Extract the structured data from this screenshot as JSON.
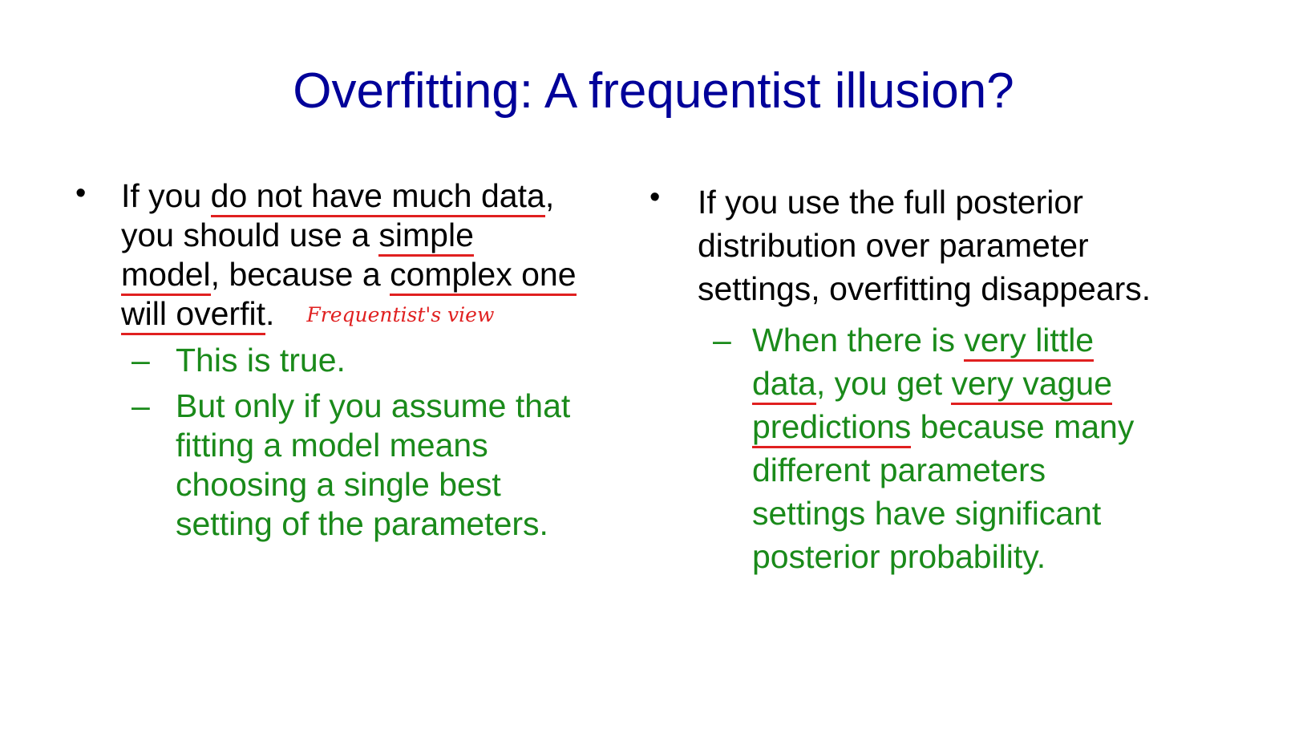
{
  "slide": {
    "title": "Overfitting: A frequentist illusion?"
  },
  "left": {
    "bullet_symbol": "•",
    "p1": "If you ",
    "u1": "do not have much data",
    "p2": ",",
    "p3": "you should use a ",
    "u2": "simple",
    "u3": "model",
    "p4": ", because a ",
    "u4": "complex one",
    "u5": "will overfit",
    "p5": ".",
    "annotation": "Frequentist's view",
    "dash": "–",
    "sub1": "This is true.",
    "sub2_l1": "But only if you assume that",
    "sub2_l2": "fitting a model means",
    "sub2_l3": "choosing a single best",
    "sub2_l4": "setting of the parameters."
  },
  "right": {
    "bullet_symbol": "•",
    "l1": "If you use the full posterior",
    "l2": "distribution over parameter",
    "l3": "settings, overfitting disappears.",
    "dash": "–",
    "s1": "When there is ",
    "su1": "very little",
    "su2": "data",
    "s2": ", you get ",
    "su3": "very vague",
    "su4": "predictions",
    "s3": " because many",
    "s4": "different parameters",
    "s5": "settings have significant",
    "s6": "posterior probability."
  }
}
